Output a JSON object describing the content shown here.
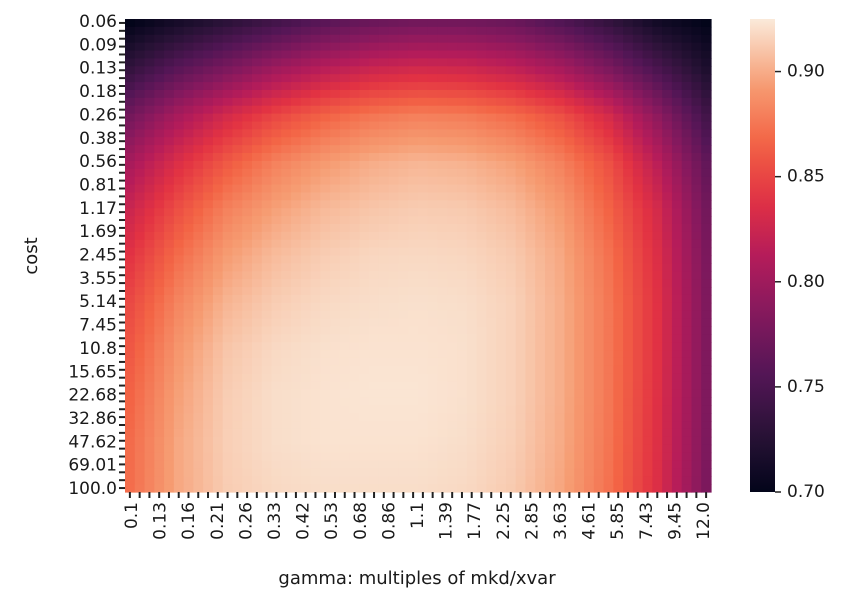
{
  "chart_data": {
    "type": "heatmap",
    "xlabel": "gamma: multiples of mkd/xvar",
    "ylabel": "cost",
    "x_tick_labels": [
      "0.1",
      "0.13",
      "0.16",
      "0.21",
      "0.26",
      "0.33",
      "0.42",
      "0.53",
      "0.68",
      "0.86",
      "1.1",
      "1.39",
      "1.77",
      "2.25",
      "2.85",
      "3.63",
      "4.61",
      "5.85",
      "7.43",
      "9.45",
      "12.0"
    ],
    "y_tick_labels": [
      "0.06",
      "0.09",
      "0.13",
      "0.18",
      "0.26",
      "0.38",
      "0.56",
      "0.81",
      "1.17",
      "1.69",
      "2.45",
      "3.55",
      "5.14",
      "7.45",
      "10.8",
      "15.65",
      "22.68",
      "32.86",
      "47.62",
      "69.01",
      "100.0"
    ],
    "grid_cols": 60,
    "grid_rows": 60,
    "value_range": [
      0.7,
      0.925
    ],
    "colorbar": {
      "colormap": "rocket",
      "ticks": [
        0.7,
        0.75,
        0.8,
        0.85,
        0.9
      ],
      "tick_labels": [
        "0.70",
        "0.75",
        "0.80",
        "0.85",
        "0.90"
      ]
    },
    "values": [
      [
        0.7,
        0.715,
        0.73,
        0.745,
        0.76,
        0.77,
        0.775,
        0.775,
        0.77,
        0.755,
        0.735,
        0.712,
        0.7
      ],
      [
        0.735,
        0.76,
        0.78,
        0.8,
        0.815,
        0.825,
        0.83,
        0.828,
        0.82,
        0.805,
        0.78,
        0.75,
        0.72
      ],
      [
        0.775,
        0.805,
        0.83,
        0.85,
        0.865,
        0.875,
        0.88,
        0.878,
        0.87,
        0.855,
        0.83,
        0.79,
        0.745
      ],
      [
        0.805,
        0.835,
        0.86,
        0.88,
        0.892,
        0.9,
        0.904,
        0.902,
        0.895,
        0.88,
        0.855,
        0.815,
        0.765
      ],
      [
        0.825,
        0.855,
        0.88,
        0.895,
        0.905,
        0.91,
        0.913,
        0.912,
        0.906,
        0.892,
        0.865,
        0.83,
        0.775
      ],
      [
        0.84,
        0.87,
        0.893,
        0.906,
        0.913,
        0.917,
        0.918,
        0.917,
        0.912,
        0.898,
        0.872,
        0.835,
        0.78
      ],
      [
        0.852,
        0.882,
        0.903,
        0.913,
        0.918,
        0.92,
        0.921,
        0.92,
        0.915,
        0.9,
        0.875,
        0.838,
        0.782
      ],
      [
        0.86,
        0.89,
        0.91,
        0.918,
        0.921,
        0.922,
        0.922,
        0.921,
        0.915,
        0.9,
        0.875,
        0.838,
        0.782
      ],
      [
        0.866,
        0.895,
        0.913,
        0.92,
        0.922,
        0.923,
        0.923,
        0.921,
        0.915,
        0.9,
        0.875,
        0.837,
        0.782
      ],
      [
        0.87,
        0.898,
        0.914,
        0.92,
        0.922,
        0.922,
        0.922,
        0.92,
        0.914,
        0.899,
        0.874,
        0.836,
        0.781
      ],
      [
        0.871,
        0.898,
        0.913,
        0.918,
        0.92,
        0.92,
        0.92,
        0.918,
        0.912,
        0.897,
        0.872,
        0.835,
        0.78
      ]
    ]
  }
}
